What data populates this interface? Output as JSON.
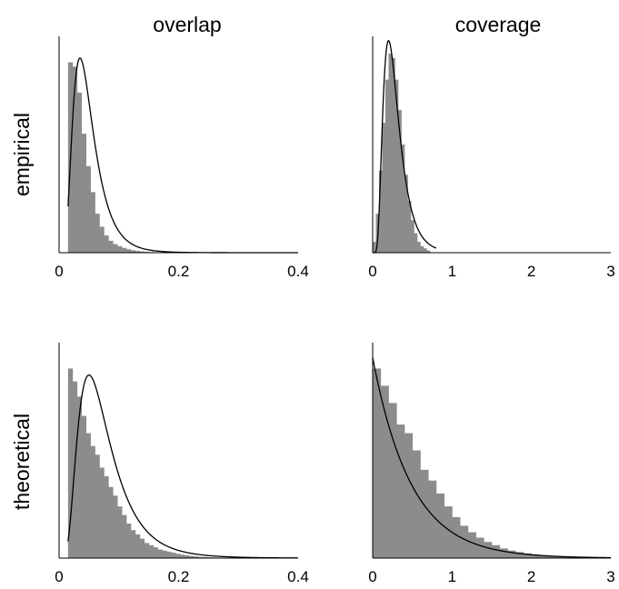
{
  "column_titles": [
    "overlap",
    "coverage"
  ],
  "row_labels": [
    "empirical",
    "theoretical"
  ],
  "colors": {
    "histogram": "#8c8c8c",
    "curve": "#000000",
    "axis": "#000000"
  },
  "chart_data": [
    {
      "type": "histogram",
      "row": "empirical",
      "column": "overlap",
      "xlim": [
        0,
        0.4
      ],
      "xticks": [
        0,
        0.2,
        0.4
      ],
      "ytick_labels_shown": false,
      "hist": {
        "x0": 0.015,
        "bin_width": 0.0075,
        "values": [
          0.88,
          0.86,
          0.74,
          0.55,
          0.4,
          0.28,
          0.18,
          0.12,
          0.08,
          0.055,
          0.04,
          0.03,
          0.022,
          0.016,
          0.011,
          0.008,
          0.006,
          0.004,
          0.003,
          0.002,
          0.0015,
          0.001
        ]
      },
      "curve": {
        "type": "lognormal",
        "x_start": 0.015,
        "x_end": 0.4,
        "peak_x": 0.035,
        "peak_y": 0.9,
        "sigma": 0.5
      }
    },
    {
      "type": "histogram",
      "row": "empirical",
      "column": "coverage",
      "xlim": [
        0,
        3
      ],
      "xticks": [
        0,
        1,
        2,
        3
      ],
      "ytick_labels_shown": false,
      "hist": {
        "x0": 0.0,
        "bin_width": 0.04,
        "values": [
          0.05,
          0.18,
          0.38,
          0.6,
          0.8,
          0.92,
          0.9,
          0.8,
          0.66,
          0.5,
          0.36,
          0.24,
          0.15,
          0.09,
          0.05,
          0.03,
          0.02,
          0.01
        ]
      },
      "curve": {
        "type": "lognormal",
        "x_start": 0.0,
        "x_end": 0.8,
        "peak_x": 0.2,
        "peak_y": 0.98,
        "sigma": 0.5
      }
    },
    {
      "type": "histogram",
      "row": "theoretical",
      "column": "overlap",
      "xlim": [
        0,
        0.4
      ],
      "xticks": [
        0,
        0.2,
        0.4
      ],
      "ytick_labels_shown": false,
      "hist": {
        "x0": 0.015,
        "bin_width": 0.0075,
        "values": [
          0.88,
          0.82,
          0.75,
          0.66,
          0.58,
          0.52,
          0.48,
          0.42,
          0.38,
          0.33,
          0.29,
          0.24,
          0.2,
          0.16,
          0.13,
          0.11,
          0.09,
          0.07,
          0.06,
          0.05,
          0.04,
          0.035,
          0.03,
          0.025,
          0.02,
          0.016,
          0.013,
          0.01,
          0.008,
          0.006,
          0.005,
          0.004,
          0.003,
          0.002,
          0.0015,
          0.001
        ]
      },
      "curve": {
        "type": "lognormal",
        "x_start": 0.015,
        "x_end": 0.4,
        "peak_x": 0.05,
        "peak_y": 0.85,
        "sigma": 0.55
      }
    },
    {
      "type": "histogram",
      "row": "theoretical",
      "column": "coverage",
      "xlim": [
        0,
        3
      ],
      "xticks": [
        0,
        1,
        2,
        3
      ],
      "ytick_labels_shown": false,
      "hist": {
        "x0": 0.0,
        "bin_width": 0.1,
        "values": [
          0.88,
          0.8,
          0.72,
          0.62,
          0.58,
          0.5,
          0.41,
          0.36,
          0.3,
          0.24,
          0.19,
          0.15,
          0.12,
          0.095,
          0.075,
          0.06,
          0.045,
          0.035,
          0.028,
          0.022,
          0.017,
          0.013,
          0.01,
          0.008,
          0.006,
          0.004,
          0.003,
          0.002,
          0.001,
          0.0005
        ]
      },
      "curve": {
        "type": "exponential",
        "x_start": 0.0,
        "x_end": 3.0,
        "y0": 0.93,
        "rate": 2.05
      }
    }
  ]
}
